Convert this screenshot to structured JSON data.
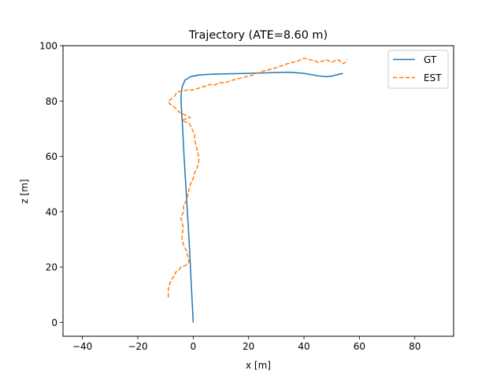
{
  "chart_data": {
    "type": "line",
    "title": "Trajectory (ATE=8.60 m)",
    "xlabel": "x [m]",
    "ylabel": "z [m]",
    "xlim": [
      -47,
      94
    ],
    "ylim": [
      -5,
      100
    ],
    "xticks": [
      -40,
      -20,
      0,
      20,
      40,
      60,
      80
    ],
    "yticks": [
      0,
      20,
      40,
      60,
      80,
      100
    ],
    "grid": false,
    "legend_position": "top-right",
    "series": [
      {
        "name": "GT",
        "color": "#1f77b4",
        "style": "solid",
        "points": [
          [
            0,
            0
          ],
          [
            -0.5,
            10
          ],
          [
            -1.0,
            20
          ],
          [
            -1.5,
            30
          ],
          [
            -2.1,
            40
          ],
          [
            -2.7,
            50
          ],
          [
            -3.3,
            60
          ],
          [
            -3.8,
            70
          ],
          [
            -4.3,
            78
          ],
          [
            -4.4,
            82
          ],
          [
            -4.0,
            85
          ],
          [
            -3.0,
            87.5
          ],
          [
            -1.0,
            88.8
          ],
          [
            2,
            89.4
          ],
          [
            5,
            89.6
          ],
          [
            10,
            89.8
          ],
          [
            20,
            90.0
          ],
          [
            30,
            90.3
          ],
          [
            35,
            90.4
          ],
          [
            40,
            90.0
          ],
          [
            45,
            89.1
          ],
          [
            48,
            88.8
          ],
          [
            50,
            89.0
          ],
          [
            52,
            89.5
          ],
          [
            54,
            90.0
          ]
        ]
      },
      {
        "name": "EST",
        "color": "#ff7f0e",
        "style": "dashed",
        "points": [
          [
            -9,
            9
          ],
          [
            -9,
            12
          ],
          [
            -8.5,
            14
          ],
          [
            -7.5,
            16
          ],
          [
            -6.5,
            17
          ],
          [
            -6.5,
            18
          ],
          [
            -5,
            19
          ],
          [
            -4.5,
            20
          ],
          [
            -3,
            20.5
          ],
          [
            -2,
            21
          ],
          [
            -1.5,
            22
          ],
          [
            -2,
            24
          ],
          [
            -2.5,
            26
          ],
          [
            -3.5,
            28
          ],
          [
            -4,
            30
          ],
          [
            -4,
            32
          ],
          [
            -3.5,
            34
          ],
          [
            -4,
            36
          ],
          [
            -4.5,
            38
          ],
          [
            -3.5,
            40
          ],
          [
            -3.5,
            42
          ],
          [
            -2.5,
            44
          ],
          [
            -2,
            46
          ],
          [
            -1.5,
            48
          ],
          [
            -1,
            50
          ],
          [
            0,
            52
          ],
          [
            0.5,
            54
          ],
          [
            1.5,
            56
          ],
          [
            2,
            58
          ],
          [
            2,
            60
          ],
          [
            1.5,
            62
          ],
          [
            1,
            64
          ],
          [
            0.5,
            66
          ],
          [
            0.5,
            68
          ],
          [
            -0.5,
            70
          ],
          [
            -1.5,
            72
          ],
          [
            -3,
            72.5
          ],
          [
            -4,
            73
          ],
          [
            -3,
            73.5
          ],
          [
            -1,
            74
          ],
          [
            -3,
            75
          ],
          [
            -5,
            76
          ],
          [
            -6,
            77
          ],
          [
            -7,
            78
          ],
          [
            -8.5,
            79
          ],
          [
            -9,
            80
          ],
          [
            -7.5,
            81
          ],
          [
            -6.5,
            82
          ],
          [
            -6,
            83
          ],
          [
            -5,
            83.5
          ],
          [
            -2,
            84
          ],
          [
            0,
            84
          ],
          [
            3,
            85
          ],
          [
            5,
            85.5
          ],
          [
            6,
            86
          ],
          [
            8,
            85.8
          ],
          [
            9,
            86.5
          ],
          [
            12,
            86.8
          ],
          [
            14,
            87.5
          ],
          [
            16,
            88
          ],
          [
            18,
            88.5
          ],
          [
            20,
            89
          ],
          [
            22,
            89.5
          ],
          [
            24,
            90.5
          ],
          [
            26,
            91
          ],
          [
            28,
            91.5
          ],
          [
            30,
            92
          ],
          [
            31,
            92.5
          ],
          [
            33,
            93
          ],
          [
            34,
            93.5
          ],
          [
            36,
            94
          ],
          [
            38,
            94.5
          ],
          [
            39,
            95
          ],
          [
            40,
            95.5
          ],
          [
            42,
            95
          ],
          [
            44,
            94.5
          ],
          [
            45,
            94
          ],
          [
            47,
            94.5
          ],
          [
            48,
            95
          ],
          [
            49,
            94.5
          ],
          [
            50,
            94
          ],
          [
            51,
            94.5
          ],
          [
            52,
            95
          ],
          [
            53,
            94.5
          ],
          [
            54,
            93.5
          ],
          [
            55,
            94
          ],
          [
            55.5,
            95
          ]
        ]
      }
    ]
  }
}
